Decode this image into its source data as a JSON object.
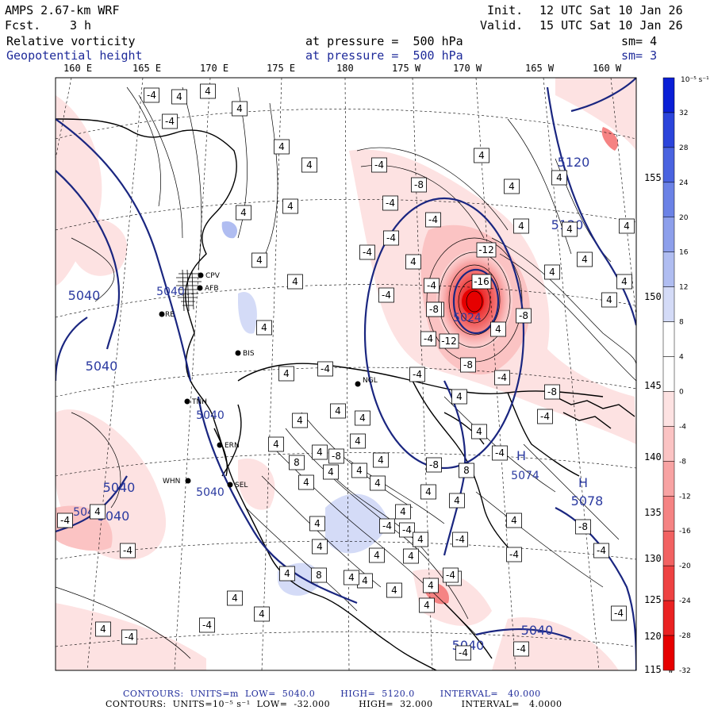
{
  "header": {
    "model": "AMPS 2.67-km WRF",
    "init_label": "Init.",
    "init_time": "12 UTC Sat 10 Jan 26",
    "fcst_label": "Fcst.",
    "fcst_value": "3 h",
    "valid_label": "Valid.",
    "valid_time": "15 UTC Sat 10 Jan 26",
    "field1": "Relative vorticity",
    "field1_level": "at pressure =  500 hPa",
    "field1_sm": "sm= 4",
    "field2": "Geopotential height",
    "field2_level": "at pressure =  500 hPa",
    "field2_sm": "sm= 3"
  },
  "lon_labels": [
    "160 E",
    "165 E",
    "170 E",
    "175 E",
    "180",
    "175 W",
    "170 W",
    "165 W",
    "160 W"
  ],
  "lat_labels": [
    "155",
    "150",
    "145",
    "140",
    "135",
    "130",
    "125",
    "120",
    "115"
  ],
  "lat_suffix": "W",
  "colorbar": {
    "unit": "10⁻⁵ s⁻¹",
    "ticks": [
      "32",
      "28",
      "24",
      "20",
      "16",
      "12",
      "8",
      "4",
      "0",
      "-4",
      "-8",
      "-12",
      "-16",
      "-20",
      "-24",
      "-28",
      "-32"
    ],
    "colors": [
      "#0a1fd6",
      "#2b44db",
      "#4a63e0",
      "#6b82e6",
      "#8d9feb",
      "#b0bdf1",
      "#d4dbf7",
      "#ffffff",
      "#ffffff",
      "#fde2e2",
      "#fbc3c3",
      "#f8a3a3",
      "#f58383",
      "#f26262",
      "#ee4242",
      "#ea2222",
      "#e60000"
    ]
  },
  "height_labels": [
    "5120",
    "5120",
    "5040",
    "5040",
    "5040",
    "5040",
    "5040",
    "5040",
    "5024",
    "5074",
    "5078",
    "5040",
    "5040",
    "5040",
    "5040"
  ],
  "h_markers": [
    "H",
    "H"
  ],
  "stations": [
    "CPV",
    "AFB",
    "RE",
    "BIS",
    "NGL",
    "TNH",
    "ERN",
    "SEL",
    "WHN"
  ],
  "vort_labels": [
    "-4",
    "4",
    "4",
    "-4",
    "4",
    "4",
    "4",
    "-4",
    "4",
    "4",
    "4",
    "-8",
    "-4",
    "4",
    "4",
    "-4",
    "4",
    "4",
    "4",
    "-4",
    "4",
    "4",
    "4",
    "-4",
    "4",
    "-4",
    "-4",
    "4",
    "-12",
    "4",
    "4",
    "4",
    "-4",
    "4",
    "-4",
    "-16",
    "-8",
    "4",
    "4",
    "-8",
    "4",
    "-4",
    "-12",
    "4",
    "-4",
    "4",
    "4",
    "4",
    "-4",
    "-8",
    "-8",
    "-8",
    "4",
    "4",
    "-8",
    "4",
    "4",
    "4",
    "8",
    "4",
    "4",
    "-8",
    "-4",
    "8",
    "4",
    "4",
    "-4",
    "-4",
    "4",
    "4",
    "4",
    "-4",
    "4",
    "4",
    "4",
    "4",
    "4",
    "4",
    "4",
    "4",
    "-4",
    "4",
    "-4",
    "-4",
    "4",
    "-4",
    "-4",
    "4",
    "-4",
    "8",
    "4",
    "4",
    "-4",
    "-4",
    "-8",
    "-4",
    "4",
    "-4",
    "-4"
  ],
  "footer": {
    "line1": "CONTOURS:  UNITS=m  LOW=  5040.0        HIGH=  5120.0        INTERVAL=   40.000",
    "line2": "CONTOURS:  UNITS=10⁻⁵ s⁻¹  LOW=  -32.000         HIGH=  32.000         INTERVAL=   4.0000"
  }
}
